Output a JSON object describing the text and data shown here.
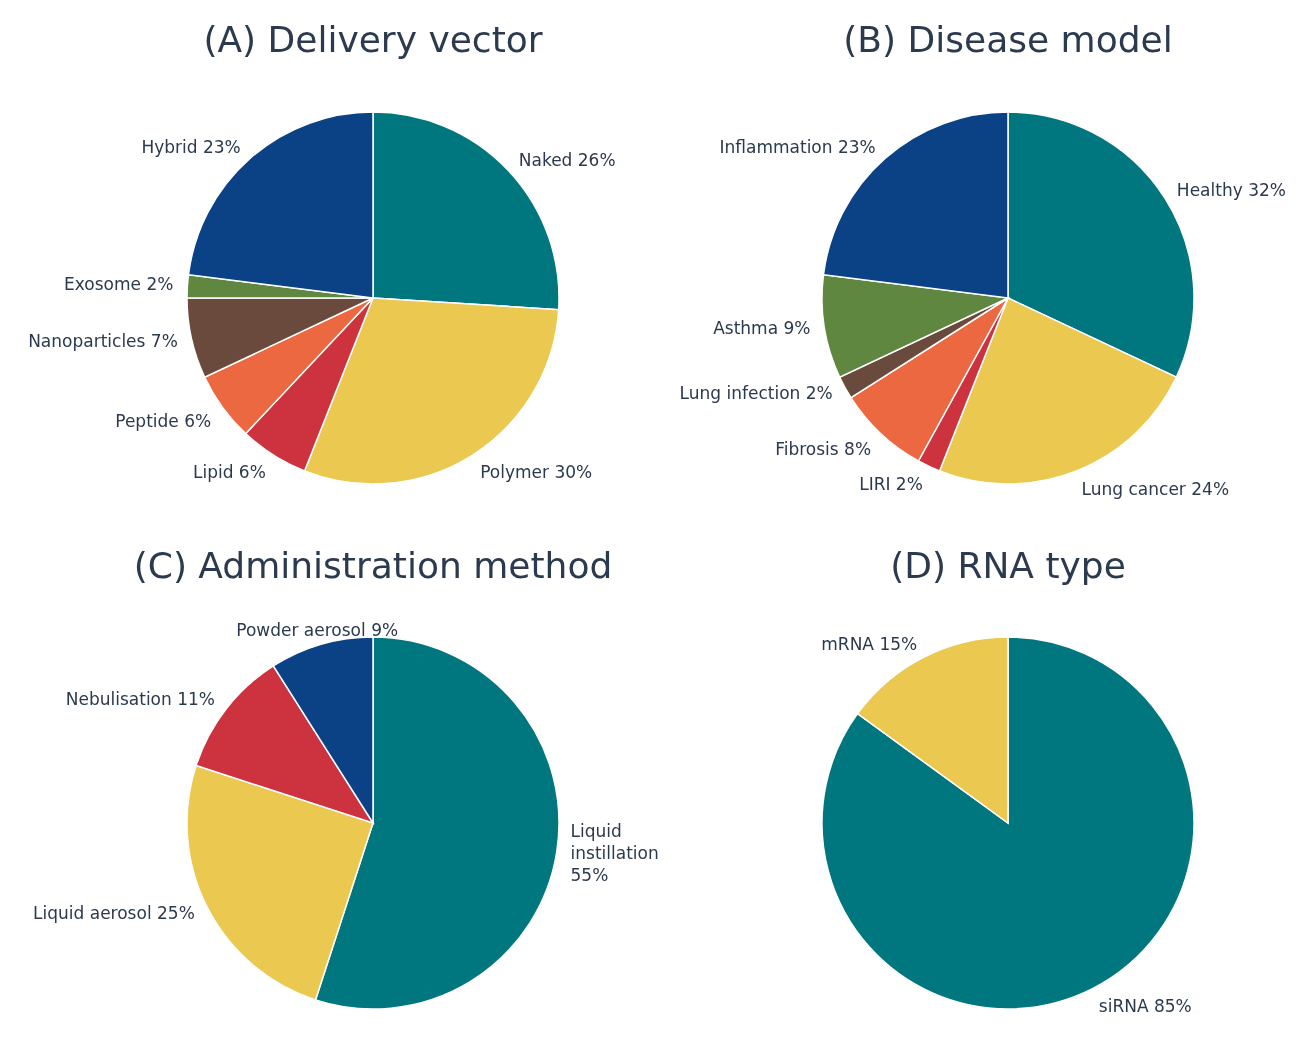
{
  "chart_data": [
    {
      "type": "pie",
      "title": "(A) Delivery vector",
      "categories": [
        "Naked",
        "Polymer",
        "Lipid",
        "Peptide",
        "Nanoparticles",
        "Exosome",
        "Hybrid"
      ],
      "values": [
        26,
        30,
        6,
        6,
        7,
        2,
        23
      ],
      "value_labels": [
        "26%",
        "30%",
        "6%",
        "6%",
        "7%",
        "2%",
        "23%"
      ],
      "colors": [
        "#00767f",
        "#ebc84f",
        "#cc333f",
        "#eb6841",
        "#6a4a3c",
        "#5f873f",
        "#0b4185"
      ]
    },
    {
      "type": "pie",
      "title": "(B) Disease model",
      "categories": [
        "Healthy",
        "Lung cancer",
        "LIRI",
        "Fibrosis",
        "Lung infection",
        "Asthma",
        "Inflammation"
      ],
      "values": [
        32,
        24,
        2,
        8,
        2,
        9,
        23
      ],
      "value_labels": [
        "32%",
        "24%",
        "2%",
        "8%",
        "2%",
        "9%",
        "23%"
      ],
      "colors": [
        "#00767f",
        "#ebc84f",
        "#cc333f",
        "#eb6841",
        "#6a4a3c",
        "#5f873f",
        "#0b4185"
      ]
    },
    {
      "type": "pie",
      "title": "(C) Administration method",
      "categories": [
        "Liquid instillation",
        "Liquid aerosol",
        "Nebulisation",
        "Powder aerosol"
      ],
      "values": [
        55,
        25,
        11,
        9
      ],
      "value_labels": [
        "55%",
        "25%",
        "11%",
        "9%"
      ],
      "colors": [
        "#00767f",
        "#ebc84f",
        "#cc333f",
        "#0b4185"
      ]
    },
    {
      "type": "pie",
      "title": "(D) RNA type",
      "categories": [
        "siRNA",
        "mRNA"
      ],
      "values": [
        85,
        15
      ],
      "value_labels": [
        "85%",
        "15%"
      ],
      "colors": [
        "#00767f",
        "#ebc84f"
      ]
    }
  ]
}
